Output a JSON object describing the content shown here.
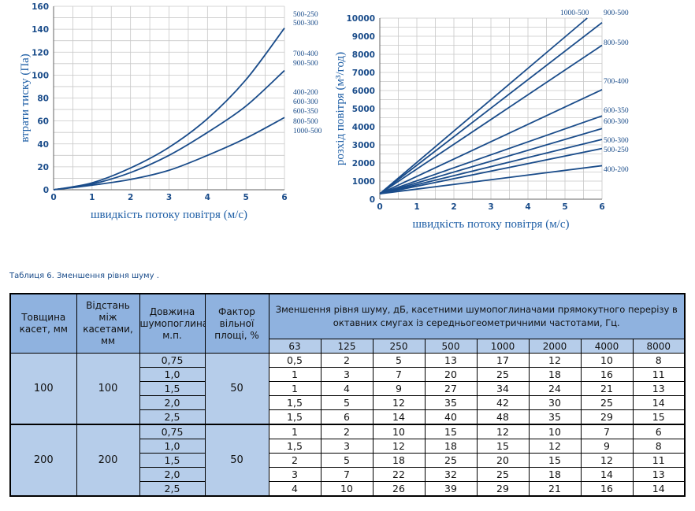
{
  "charts": [
    {
      "type": "line",
      "ylabel": "втрати тиску (Па)",
      "xlabel": "швидкість потоку повітря (м/с)",
      "xlim": [
        0,
        6
      ],
      "ylim": [
        0,
        160
      ],
      "x_ticks": [
        "0",
        "1",
        "2",
        "3",
        "4",
        "5",
        "6"
      ],
      "y_ticks": [
        "0",
        "20",
        "40",
        "60",
        "80",
        "100",
        "120",
        "140",
        "160"
      ],
      "series": [
        {
          "x": [
            0,
            1,
            2,
            3,
            4,
            5,
            6
          ],
          "values": [
            0,
            6,
            19,
            37,
            62,
            96,
            141
          ]
        },
        {
          "x": [
            0,
            1,
            2,
            3,
            4,
            5,
            6
          ],
          "values": [
            0,
            5,
            15,
            30,
            50,
            73,
            104
          ]
        },
        {
          "x": [
            0,
            1,
            2,
            3,
            4,
            5,
            6
          ],
          "values": [
            0,
            4,
            9,
            17,
            30,
            45,
            63
          ]
        }
      ],
      "right_labels": [
        "500-250",
        "500-300",
        "700-400",
        "900-500",
        "400-200",
        "600-300",
        "600-350",
        "800-500",
        "1000-500"
      ],
      "grid": true
    },
    {
      "type": "line",
      "ylabel": "розхід повітря (м³/год)",
      "xlabel": "швидкість потоку повітря (м/с)",
      "xlim": [
        0,
        6
      ],
      "ylim": [
        0,
        10000
      ],
      "x_ticks": [
        "0",
        "1",
        "2",
        "3",
        "4",
        "5",
        "6"
      ],
      "y_ticks": [
        "0",
        "1000",
        "2000",
        "3000",
        "4000",
        "5000",
        "6000",
        "7000",
        "8000",
        "9000",
        "10000"
      ],
      "series": [
        {
          "name": "1000-500",
          "x": [
            0,
            5.6
          ],
          "values": [
            300,
            10000
          ]
        },
        {
          "name": "900-500",
          "x": [
            0,
            6
          ],
          "values": [
            300,
            9750
          ]
        },
        {
          "name": "800-500",
          "x": [
            0,
            6
          ],
          "values": [
            300,
            8500
          ]
        },
        {
          "name": "700-400",
          "x": [
            0,
            6
          ],
          "values": [
            300,
            6050
          ]
        },
        {
          "name": "600-350",
          "x": [
            0,
            6
          ],
          "values": [
            300,
            4600
          ]
        },
        {
          "name": "600-300",
          "x": [
            0,
            6
          ],
          "values": [
            300,
            3900
          ]
        },
        {
          "name": "500-300",
          "x": [
            0,
            6
          ],
          "values": [
            300,
            3300
          ]
        },
        {
          "name": "500-250",
          "x": [
            0,
            6
          ],
          "values": [
            300,
            2800
          ]
        },
        {
          "name": "400-200",
          "x": [
            0,
            6
          ],
          "values": [
            300,
            1850
          ]
        }
      ],
      "grid": true
    }
  ],
  "caption": "Таблиця 6. Зменшення рівня шуму .",
  "table": {
    "headers": {
      "thickness": "Товщина касет, мм",
      "distance": "Відстань між касетами, мм",
      "length": "Довжина шумопоглинача, м.п.",
      "factor": "Фактор вільної площі, %",
      "main": "Зменшення рівня шуму, дБ, касетними шумопоглиначами прямокутного перерізу в октавних смугах із середньогеометричними частотами, Гц."
    },
    "frequencies": [
      "63",
      "125",
      "250",
      "500",
      "1000",
      "2000",
      "4000",
      "8000"
    ],
    "groups": [
      {
        "thickness": "100",
        "distance": "100",
        "factor": "50",
        "rows": [
          {
            "length": "0,75",
            "values": [
              "0,5",
              "2",
              "5",
              "13",
              "17",
              "12",
              "10",
              "8"
            ]
          },
          {
            "length": "1,0",
            "values": [
              "1",
              "3",
              "7",
              "20",
              "25",
              "18",
              "16",
              "11"
            ]
          },
          {
            "length": "1,5",
            "values": [
              "1",
              "4",
              "9",
              "27",
              "34",
              "24",
              "21",
              "13"
            ]
          },
          {
            "length": "2,0",
            "values": [
              "1,5",
              "5",
              "12",
              "35",
              "42",
              "30",
              "25",
              "14"
            ]
          },
          {
            "length": "2,5",
            "values": [
              "1,5",
              "6",
              "14",
              "40",
              "48",
              "35",
              "29",
              "15"
            ]
          }
        ]
      },
      {
        "thickness": "200",
        "distance": "200",
        "factor": "50",
        "rows": [
          {
            "length": "0,75",
            "values": [
              "1",
              "2",
              "10",
              "15",
              "12",
              "10",
              "7",
              "6"
            ]
          },
          {
            "length": "1,0",
            "values": [
              "1,5",
              "3",
              "12",
              "18",
              "15",
              "12",
              "9",
              "8"
            ]
          },
          {
            "length": "1,5",
            "values": [
              "2",
              "5",
              "18",
              "25",
              "20",
              "15",
              "12",
              "11"
            ]
          },
          {
            "length": "2,0",
            "values": [
              "3",
              "7",
              "22",
              "32",
              "25",
              "18",
              "14",
              "13"
            ]
          },
          {
            "length": "2,5",
            "values": [
              "4",
              "10",
              "26",
              "39",
              "29",
              "21",
              "16",
              "14"
            ]
          }
        ]
      }
    ]
  },
  "colors": {
    "line": "#1a4c8a",
    "axis_text": "#1f5fa6",
    "grid": "#c8c8c8",
    "header_fill": "#8fb2df",
    "cell_fill": "#b6cdea"
  }
}
